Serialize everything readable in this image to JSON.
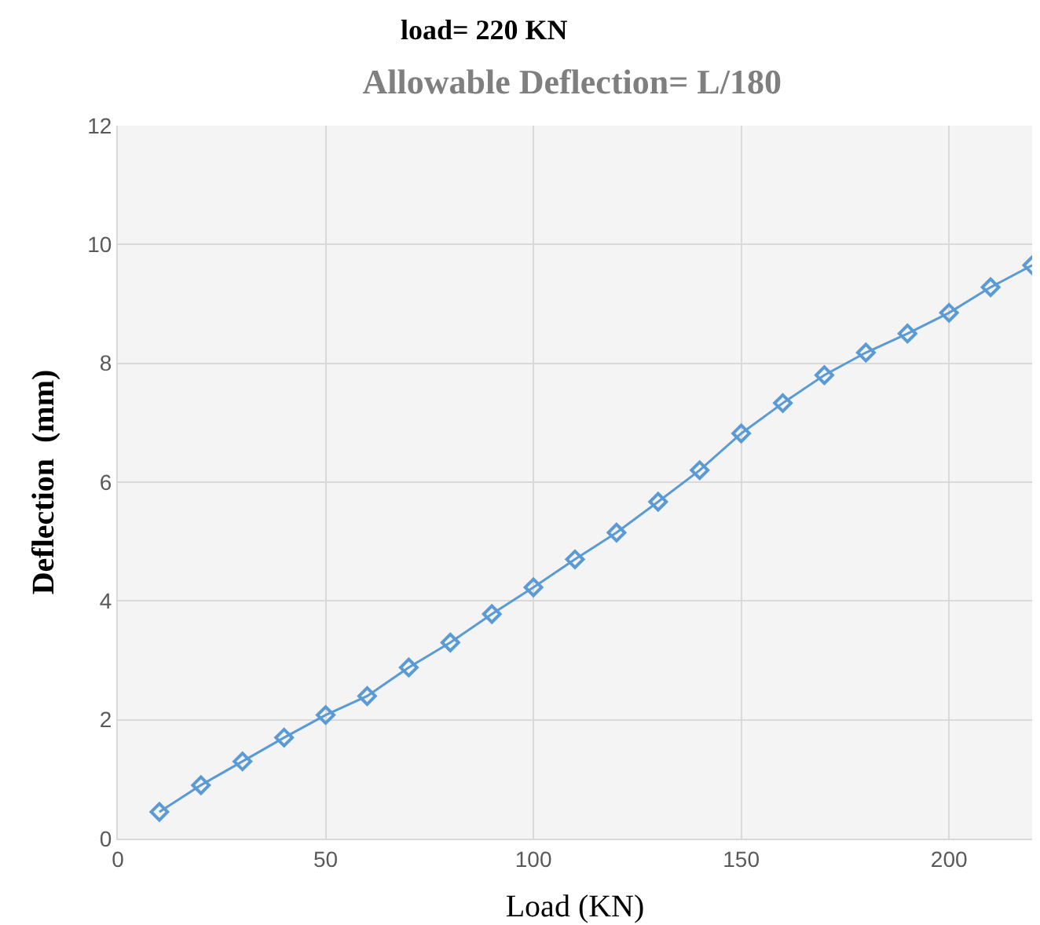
{
  "chart_data": {
    "type": "line",
    "title": "Allowable Deflection= L/180",
    "xlabel": "Load (KN)",
    "ylabel": "Deflection  (mm)",
    "annotations": [
      "load= 220 KN"
    ],
    "x": [
      10,
      20,
      30,
      40,
      50,
      60,
      70,
      80,
      90,
      100,
      110,
      120,
      130,
      140,
      150,
      160,
      170,
      180,
      190,
      200,
      210,
      220
    ],
    "series": [
      {
        "color": "#5b9bd5",
        "values": [
          0.45,
          0.9,
          1.3,
          1.7,
          2.08,
          2.4,
          2.88,
          3.3,
          3.78,
          4.23,
          4.7,
          5.15,
          5.67,
          6.2,
          6.82,
          7.33,
          7.8,
          8.18,
          8.5,
          8.85,
          9.28,
          9.65
        ]
      }
    ],
    "xlim": [
      0,
      220
    ],
    "xticks": [
      0,
      50,
      100,
      150,
      200
    ],
    "ylim": [
      0,
      12
    ],
    "yticks": [
      0,
      2,
      4,
      6,
      8,
      10,
      12
    ],
    "grid": true,
    "marker": "diamond",
    "line_style": "solid"
  }
}
